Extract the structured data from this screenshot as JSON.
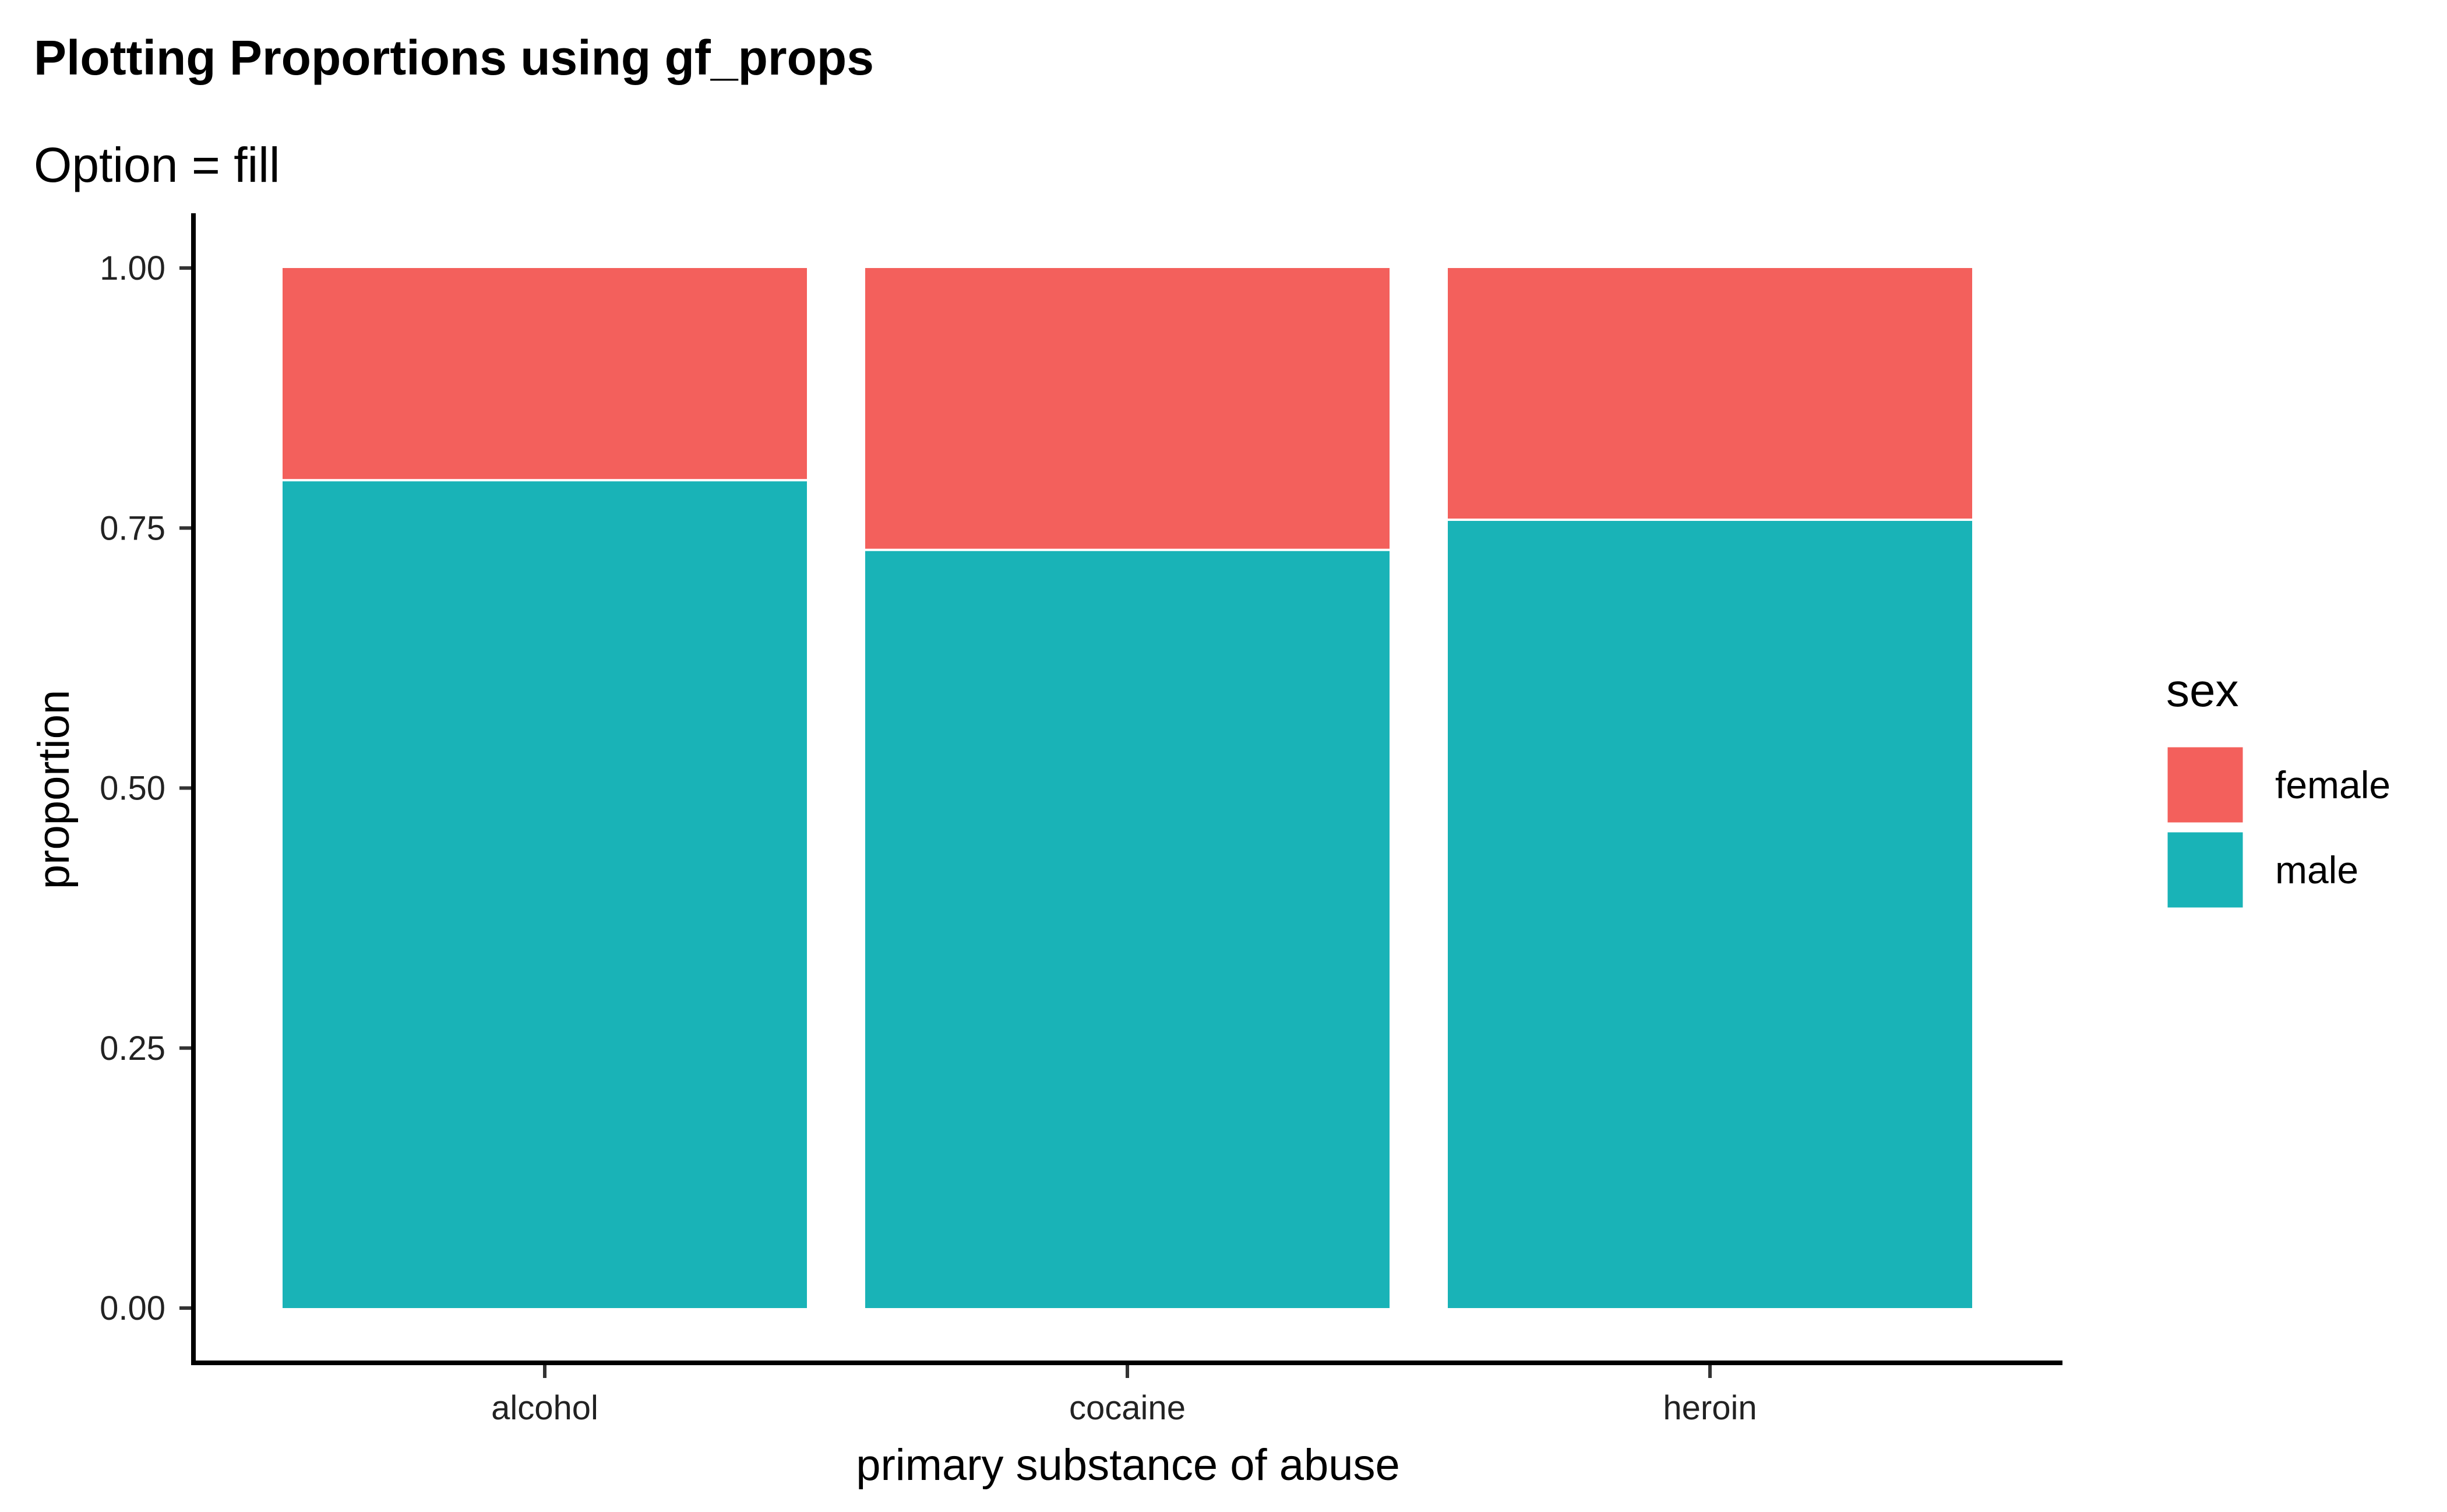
{
  "chart_data": {
    "type": "bar",
    "stacked": true,
    "title": "Plotting Proportions using gf_props",
    "subtitle": "Option = fill",
    "xlabel": "primary substance of abuse",
    "ylabel": "proportion",
    "ylim": [
      0,
      1
    ],
    "yticks": [
      "0.00",
      "0.25",
      "0.50",
      "0.75",
      "1.00"
    ],
    "ytick_values": [
      0,
      0.25,
      0.5,
      0.75,
      1.0
    ],
    "categories": [
      "alcohol",
      "cocaine",
      "heroin"
    ],
    "series": [
      {
        "name": "male",
        "color": "#19B3B7",
        "values": [
          0.796,
          0.729,
          0.758
        ]
      },
      {
        "name": "female",
        "color": "#F3605C",
        "values": [
          0.204,
          0.271,
          0.242
        ]
      }
    ],
    "legend": {
      "title": "sex",
      "position": "right",
      "entries": [
        {
          "label": "female",
          "color": "#F3605C"
        },
        {
          "label": "male",
          "color": "#19B3B7"
        }
      ]
    },
    "grid": false
  }
}
